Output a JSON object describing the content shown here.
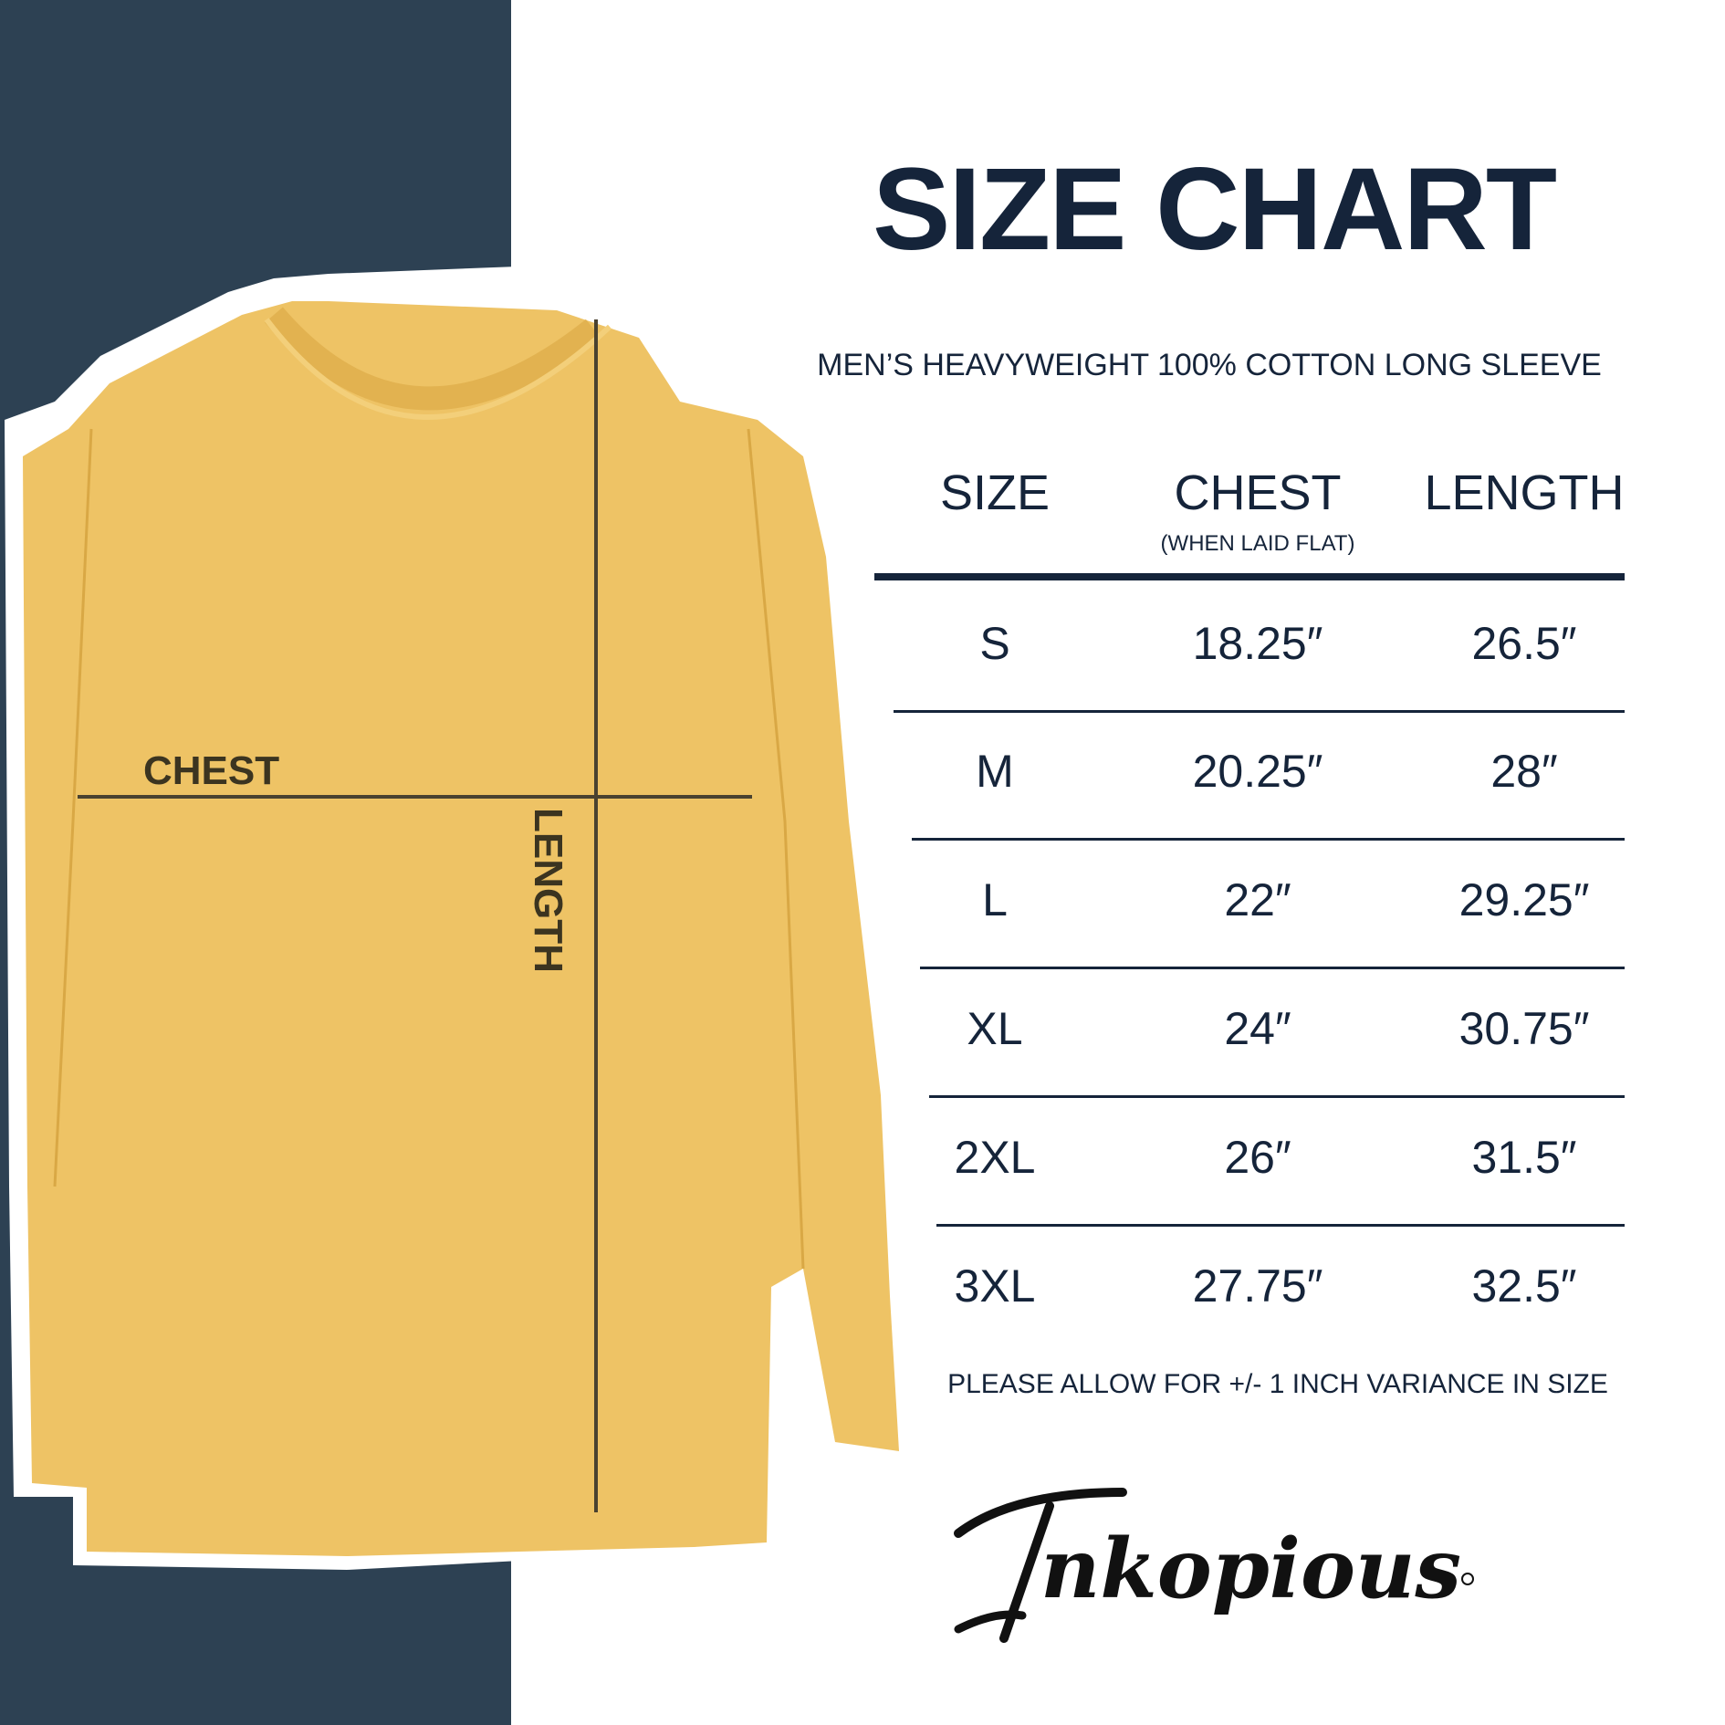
{
  "title": "SIZE CHART",
  "subtitle": "MEN’S HEAVYWEIGHT 100% COTTON LONG SLEEVE",
  "diagram": {
    "chest_label": "CHEST",
    "length_label": "LENGTH",
    "shirt_color": "#eec365",
    "panel_color": "#2d4153"
  },
  "table": {
    "headers": {
      "size": "SIZE",
      "chest": "CHEST",
      "chest_note": "(WHEN LAID FLAT)",
      "length": "LENGTH"
    },
    "rows": [
      {
        "size": "S",
        "chest": "18.25″",
        "length": "26.5″"
      },
      {
        "size": "M",
        "chest": "20.25″",
        "length": "28″"
      },
      {
        "size": "L",
        "chest": "22″",
        "length": "29.25″"
      },
      {
        "size": "XL",
        "chest": "24″",
        "length": "30.75″"
      },
      {
        "size": "2XL",
        "chest": "26″",
        "length": "31.5″"
      },
      {
        "size": "3XL",
        "chest": "27.75″",
        "length": "32.5″"
      }
    ]
  },
  "note": "PLEASE ALLOW FOR +/- 1 INCH VARIANCE IN SIZE",
  "brand": {
    "logo_text": "Inkopious",
    "text_color": "#15243a"
  }
}
